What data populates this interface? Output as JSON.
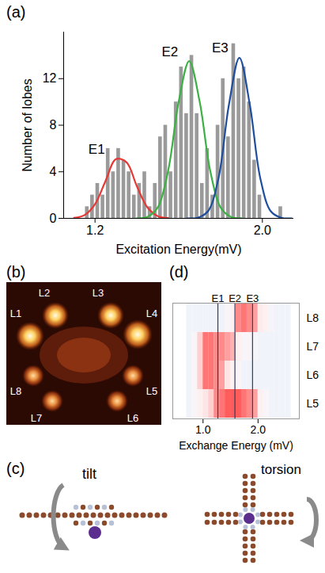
{
  "chart_data": [
    {
      "type": "histogram",
      "panel_label": "(a)",
      "x_label": "Excitation Energy(mV)",
      "y_label": "Number of lobes",
      "bins": [
        1.15,
        1.175,
        1.2,
        1.225,
        1.25,
        1.275,
        1.3,
        1.325,
        1.35,
        1.375,
        1.4,
        1.425,
        1.45,
        1.475,
        1.5,
        1.525,
        1.55,
        1.575,
        1.6,
        1.625,
        1.65,
        1.675,
        1.7,
        1.725,
        1.75,
        1.775,
        1.8,
        1.825,
        1.85,
        1.875,
        1.9,
        1.925,
        1.95,
        1.975,
        2.0,
        2.025,
        2.05,
        2.075,
        2.1
      ],
      "counts": [
        1,
        2,
        3,
        2,
        6,
        4,
        6,
        5,
        4,
        2,
        3,
        4,
        1,
        3,
        7,
        8,
        4,
        10,
        13,
        9,
        14,
        9,
        3,
        6,
        2,
        8,
        12,
        7,
        15,
        12,
        13,
        10,
        5,
        2,
        0,
        0,
        0,
        1
      ],
      "color": "#9a9a9a",
      "xlim": [
        1.05,
        2.15
      ],
      "ylim": [
        0,
        16
      ],
      "xticks": [
        1.2,
        {
          "value": 2,
          "label": "2.0"
        }
      ],
      "yticks": [
        0,
        4,
        8,
        12
      ],
      "series": [
        {
          "name": "E1",
          "type": "line",
          "color": "#e53935",
          "x": [
            1.1,
            1.15,
            1.2,
            1.25,
            1.3,
            1.35,
            1.4,
            1.45,
            1.5,
            1.55
          ],
          "values": [
            0.04,
            0.28,
            1.22,
            3.2,
            5.09,
            4.83,
            2.76,
            0.95,
            0.19,
            0.02
          ]
        },
        {
          "name": "E2",
          "type": "line",
          "color": "#3cb043",
          "x": [
            1.4,
            1.45,
            1.5,
            1.55,
            1.6,
            1.65,
            1.7,
            1.75,
            1.8,
            1.85,
            1.9
          ],
          "values": [
            0.01,
            0.12,
            0.94,
            4.14,
            10.04,
            13.5,
            10.04,
            4.14,
            0.94,
            0.12,
            0.01
          ]
        },
        {
          "name": "E3",
          "type": "line",
          "color": "#1f4e9c",
          "x": [
            1.64,
            1.69,
            1.74,
            1.79,
            1.84,
            1.89,
            1.94,
            1.99,
            2.04,
            2.09,
            2.14
          ],
          "values": [
            0,
            0.05,
            0.61,
            3.44,
            9.75,
            13.8,
            9.75,
            3.44,
            0.61,
            0.05,
            0
          ]
        }
      ]
    },
    {
      "type": "heatmap",
      "panel_label": "(d)",
      "x_label": "Exchange Energy (mV)",
      "xlim": [
        0.45,
        2.75
      ],
      "xticks": [
        {
          "value": 1,
          "label": "1.0"
        },
        {
          "value": 2,
          "label": "2.0"
        }
      ],
      "categories": [
        "L8",
        "L7",
        "L6",
        "L5"
      ],
      "x_bins": [
        0.7,
        0.8,
        0.9,
        1.0,
        1.1,
        1.2,
        1.3,
        1.4,
        1.5,
        1.6,
        1.7,
        1.8,
        1.9,
        2.0,
        2.1,
        2.2,
        2.3,
        2.4,
        2.5,
        2.6
      ],
      "cells": [
        [
          0.2,
          0.2,
          0.2,
          0.2,
          0.2,
          0.2,
          0.2,
          0.3,
          0.4,
          0.8,
          0.85,
          0.8,
          0.75,
          0.45,
          0.4,
          0.25,
          0.2,
          0.2,
          0.2
        ],
        [
          0.2,
          0.3,
          0.6,
          0.85,
          0.85,
          0.8,
          0.8,
          0.75,
          0.7,
          0.4,
          0.3,
          0.3,
          0.25,
          0.2,
          0.2,
          0.2,
          0.2,
          0.2,
          0.2
        ],
        [
          0.2,
          0.3,
          0.6,
          0.85,
          0.85,
          0.8,
          0.75,
          0.5,
          0.4,
          0.3,
          0.2,
          0.2,
          0.2,
          0.2,
          0.2,
          0.2,
          0.2,
          0.2,
          0.2
        ],
        [
          0.2,
          0.3,
          0.4,
          0.5,
          0.6,
          0.8,
          0.85,
          0.9,
          0.9,
          0.9,
          0.85,
          0.8,
          0.75,
          0.4,
          0.3,
          0.2,
          0.2,
          0.2,
          0.2
        ]
      ],
      "zlim": [
        0,
        1
      ],
      "lines": [
        {
          "name": "E1",
          "x": 1.27
        },
        {
          "name": "E2",
          "x": 1.58
        },
        {
          "name": "E3",
          "x": 1.9
        }
      ]
    }
  ],
  "image_b": {
    "panel_label": "(b)",
    "lobe_labels": [
      "L1",
      "L2",
      "L3",
      "L4",
      "L5",
      "L6",
      "L7",
      "L8"
    ]
  },
  "diagram_c": {
    "panel_label": "(c)",
    "labels": [
      "tilt",
      "torsion"
    ]
  }
}
